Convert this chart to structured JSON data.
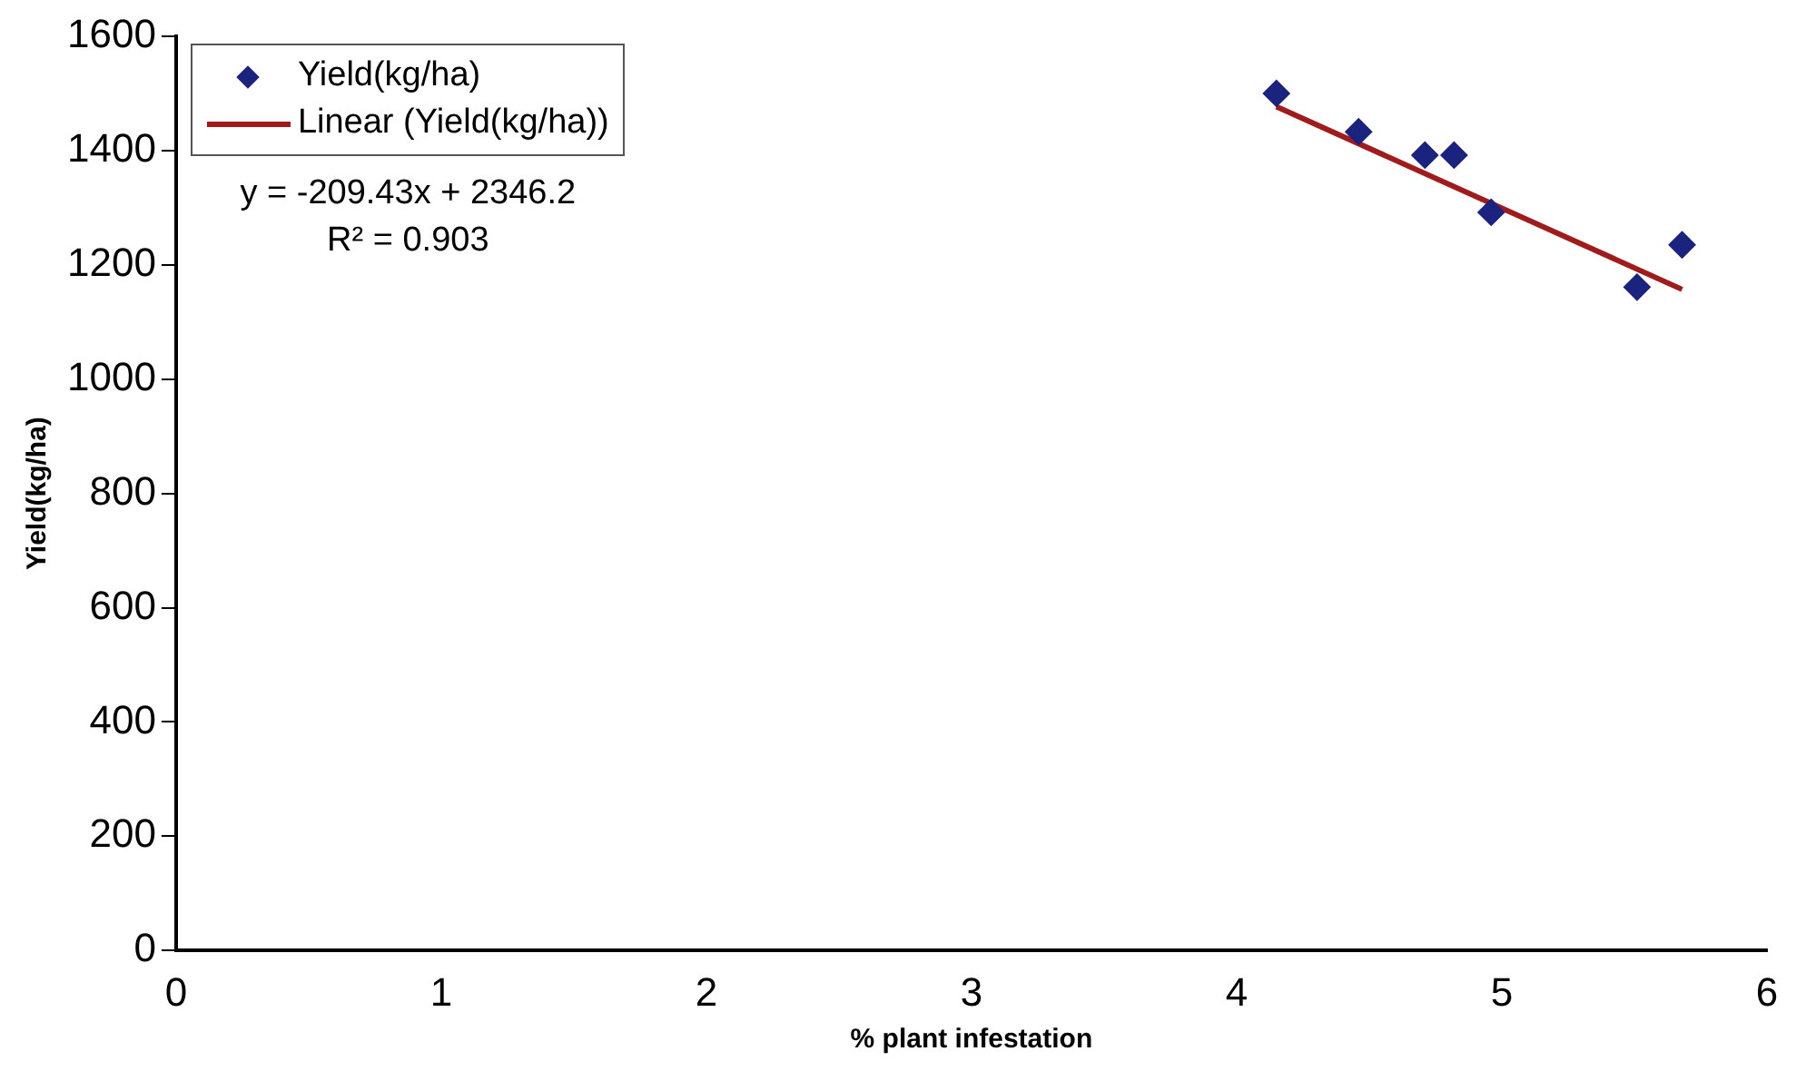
{
  "chart_data": {
    "type": "scatter",
    "xlabel": "% plant infestation",
    "ylabel": "Yield(kg/ha)",
    "xlim": [
      0,
      6
    ],
    "xticks": [
      0,
      1,
      2,
      3,
      4,
      5,
      6
    ],
    "ylim": [
      0,
      1600
    ],
    "yticks": [
      0,
      200,
      400,
      600,
      800,
      1000,
      1200,
      1400,
      1600
    ],
    "grid": false,
    "legend": "top left",
    "series": [
      {
        "name": "Yield(kg/ha)",
        "marker": "diamond",
        "color": "#1a237e",
        "x": [
          4.15,
          4.46,
          4.71,
          4.82,
          4.96,
          5.51,
          5.68
        ],
        "values": [
          1500,
          1433,
          1392,
          1392,
          1292,
          1161,
          1235
        ]
      },
      {
        "name": "Linear (Yield(kg/ha))",
        "type": "line",
        "marker": "none",
        "color": "#a01c1c",
        "line_style": "solid",
        "x": [
          4.15,
          5.68
        ],
        "values": [
          1477,
          1157
        ]
      }
    ],
    "annotations": [
      "y = -209.43x + 2346.2",
      "R² = 0.903"
    ]
  }
}
